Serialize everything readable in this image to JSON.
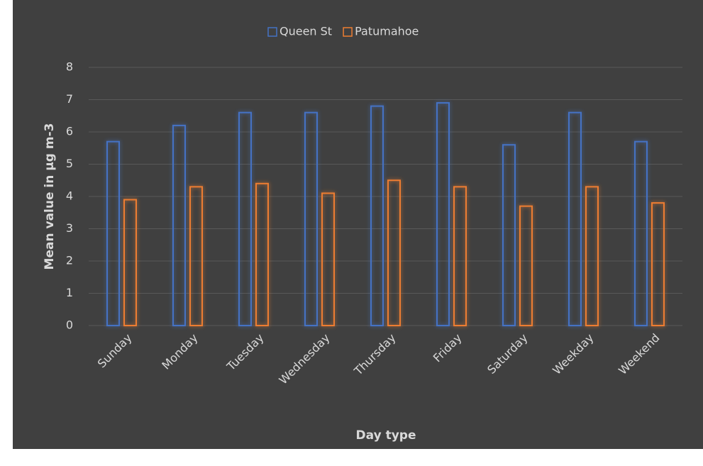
{
  "chart_data": {
    "type": "bar",
    "categories": [
      "Sunday",
      "Monday",
      "Tuesday",
      "Wednesday",
      "Thursday",
      "Friday",
      "Saturday",
      "Weekday",
      "Weekend"
    ],
    "series": [
      {
        "name": "Queen St",
        "color": "#4472c4",
        "values": [
          5.7,
          6.2,
          6.6,
          6.6,
          6.8,
          6.9,
          5.6,
          6.6,
          5.7
        ]
      },
      {
        "name": "Patumahoe",
        "color": "#ed7d31",
        "values": [
          3.9,
          4.3,
          4.4,
          4.1,
          4.5,
          4.3,
          3.7,
          4.3,
          3.8
        ]
      }
    ],
    "xlabel": "Day type",
    "ylabel": "Mean value in µg m-3",
    "ylim": [
      0,
      8
    ],
    "yticks": [
      0,
      1,
      2,
      3,
      4,
      5,
      6,
      7,
      8
    ],
    "grid": true,
    "legend": "top"
  }
}
